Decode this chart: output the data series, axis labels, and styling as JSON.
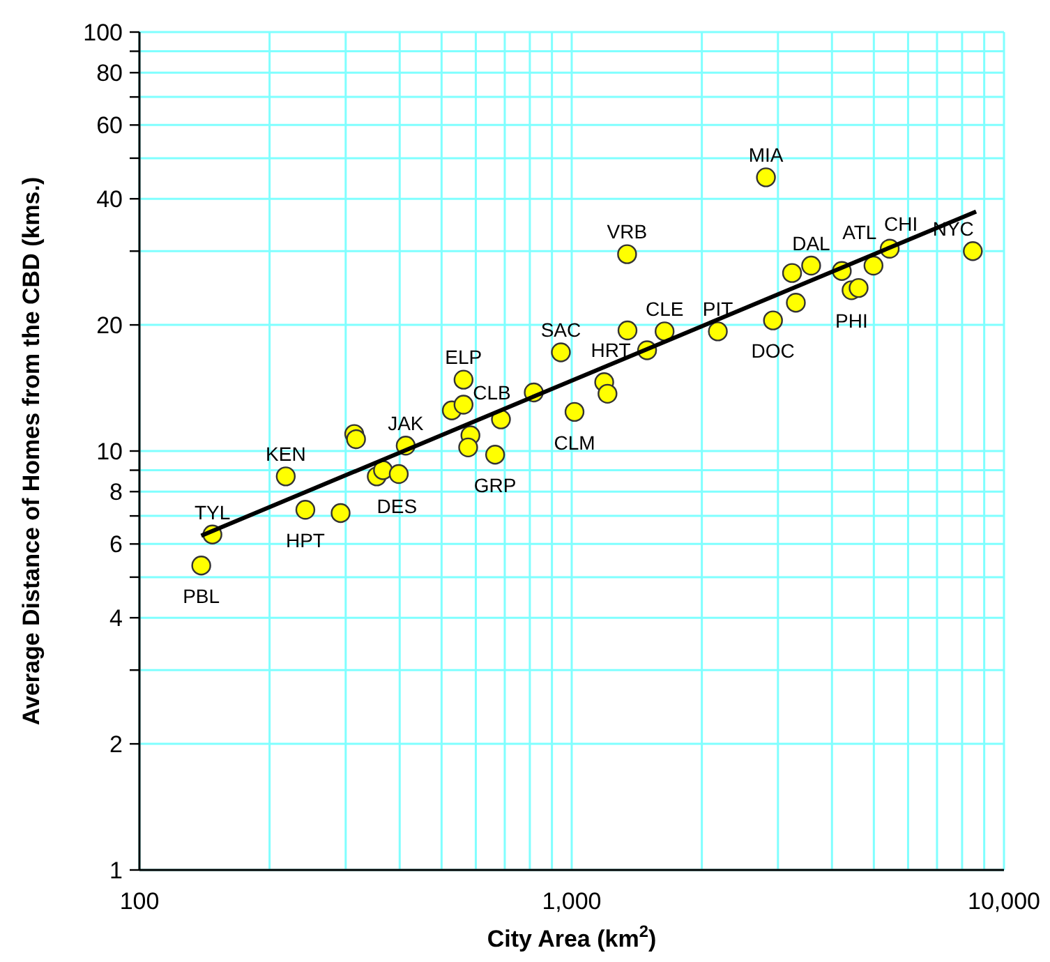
{
  "chart_data": {
    "type": "scatter",
    "xlabel": "City Area (km$^{2}$)",
    "ylabel": "Average Distance of Homes from the CBD (kms.)",
    "log": "xy",
    "grid": true,
    "xlim": [
      100,
      10000
    ],
    "ylim": [
      1,
      100
    ],
    "xticks": [
      100,
      {
        "value": 200,
        "label": null
      },
      {
        "value": 300,
        "label": null
      },
      {
        "value": 400,
        "label": null
      },
      {
        "value": 500,
        "label": null
      },
      {
        "value": 600,
        "label": null
      },
      {
        "value": 700,
        "label": null
      },
      {
        "value": 800,
        "label": null
      },
      {
        "value": 900,
        "label": null
      },
      {
        "value": 1000,
        "label": "1,000"
      },
      {
        "value": 2000,
        "label": null
      },
      {
        "value": 3000,
        "label": null
      },
      {
        "value": 4000,
        "label": null
      },
      {
        "value": 5000,
        "label": null
      },
      {
        "value": 6000,
        "label": null
      },
      {
        "value": 7000,
        "label": null
      },
      {
        "value": 8000,
        "label": null
      },
      {
        "value": 9000,
        "label": null
      },
      {
        "value": 10000,
        "label": "10,000"
      }
    ],
    "yticks": [
      1,
      2,
      {
        "value": 3,
        "label": null
      },
      4,
      {
        "value": 5,
        "label": null
      },
      6,
      {
        "value": 7,
        "label": null
      },
      8,
      {
        "value": 9,
        "label": null
      },
      10,
      20,
      {
        "value": 30,
        "label": null
      },
      40,
      {
        "value": 50,
        "label": null
      },
      60,
      {
        "value": 70,
        "label": null
      },
      80,
      {
        "value": 90,
        "label": null
      },
      100
    ],
    "series": [
      {
        "color": "#ffff00",
        "marker": "circle",
        "x": [
          139,
          147.5,
          218,
          242,
          292,
          314,
          317,
          354,
          366,
          398,
          413,
          562,
          528,
          562,
          583,
          576,
          665,
          686,
          817,
          944,
          1015,
          1189,
          1210,
          1346,
          1494,
          1640,
          1343,
          2814,
          2178,
          2922,
          3234,
          3580,
          3300,
          4215,
          4440,
          4610,
          4990,
          5440,
          8470
        ],
        "values": [
          5.33,
          6.32,
          8.7,
          7.24,
          7.11,
          10.98,
          10.67,
          8.7,
          9.0,
          8.81,
          10.3,
          14.8,
          12.5,
          12.9,
          10.9,
          10.2,
          9.8,
          11.9,
          13.8,
          17.2,
          12.4,
          14.6,
          13.7,
          19.4,
          17.4,
          19.3,
          29.5,
          45,
          19.3,
          20.5,
          26.6,
          27.7,
          22.6,
          26.9,
          24.2,
          24.5,
          27.7,
          30.4,
          30.0
        ]
      },
      {
        "type": "line",
        "color": "#000000",
        "marker": "none",
        "x": [
          139,
          8620
        ],
        "values": [
          6.28,
          37.3
        ]
      }
    ],
    "annotations": [
      {
        "text": "PBL",
        "x": 139,
        "y": 5.33
      },
      {
        "text": "TYL",
        "x": 147.5,
        "y": 6.32
      },
      {
        "text": "KEN",
        "x": 218,
        "y": 8.7
      },
      {
        "text": "HPT",
        "x": 242,
        "y": 7.24
      },
      {
        "text": "DES",
        "x": 366,
        "y": 9.0
      },
      {
        "text": "JAK",
        "x": 413,
        "y": 10.3
      },
      {
        "text": "ELP",
        "x": 562,
        "y": 14.8
      },
      {
        "text": "GRP",
        "x": 665,
        "y": 9.8
      },
      {
        "text": "CLB",
        "x": 817,
        "y": 13.8
      },
      {
        "text": "SAC",
        "x": 944,
        "y": 17.2
      },
      {
        "text": "CLM",
        "x": 1015,
        "y": 12.4
      },
      {
        "text": "HRT",
        "x": 1494,
        "y": 17.4
      },
      {
        "text": "VRB",
        "x": 1343,
        "y": 29.5
      },
      {
        "text": "CLE",
        "x": 1640,
        "y": 19.3
      },
      {
        "text": "MIA",
        "x": 2814,
        "y": 45
      },
      {
        "text": "PIT",
        "x": 2178,
        "y": 19.3
      },
      {
        "text": "DOC",
        "x": 2922,
        "y": 20.5
      },
      {
        "text": "DAL",
        "x": 3580,
        "y": 27.7
      },
      {
        "text": "PHI",
        "x": 4440,
        "y": 24.2
      },
      {
        "text": "ATL",
        "x": 4990,
        "y": 27.7
      },
      {
        "text": "CHI",
        "x": 5440,
        "y": 30.4
      },
      {
        "text": "NYC",
        "x": 8470,
        "y": 30.0
      }
    ]
  }
}
